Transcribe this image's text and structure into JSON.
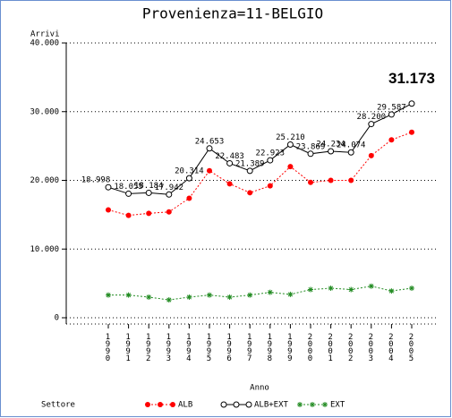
{
  "chart_data": {
    "type": "line",
    "title": "Provenienza=11-BELGIO",
    "y_label": "Arrivi",
    "x_label": "Anno",
    "legend_title": "Settore",
    "categories": [
      "1990",
      "1991",
      "1992",
      "1993",
      "1994",
      "1995",
      "1996",
      "1997",
      "1998",
      "1999",
      "2000",
      "2001",
      "2002",
      "2003",
      "2004",
      "2005"
    ],
    "ylim": [
      0,
      40000
    ],
    "yticks": [
      0,
      {
        "value": 10000,
        "label": "10.000"
      },
      {
        "value": 20000,
        "label": "20.000"
      },
      {
        "value": 30000,
        "label": "30.000"
      },
      {
        "value": 40000,
        "label": "40.000"
      }
    ],
    "grid": true,
    "series": [
      {
        "name": "ALB",
        "color": "#ff0000",
        "marker": "dot",
        "values": [
          15700,
          14900,
          15200,
          15400,
          17400,
          21400,
          19500,
          18200,
          19200,
          22000,
          19700,
          20000,
          20000,
          23600,
          25900,
          27000
        ]
      },
      {
        "name": "ALB+EXT",
        "color": "#000000",
        "marker": "circle",
        "values": [
          18998,
          18055,
          18184,
          17942,
          20314,
          24653,
          22483,
          21389,
          22923,
          25210,
          23869,
          24234,
          24074,
          28200,
          29587,
          31173
        ],
        "value_labels": [
          "18.998",
          "18.055",
          "18.184",
          "17.942",
          "20.314",
          "24.653",
          "22.483",
          "21.389",
          "22.923",
          "25.210",
          "23.869",
          "24.234",
          "24.074",
          "28.200",
          "29.587",
          "31.173"
        ]
      },
      {
        "name": "EXT",
        "color": "#228b22",
        "marker": "star",
        "values": [
          3300,
          3300,
          3000,
          2600,
          3000,
          3300,
          3000,
          3300,
          3700,
          3400,
          4100,
          4300,
          4100,
          4600,
          3900,
          4300
        ]
      }
    ]
  }
}
